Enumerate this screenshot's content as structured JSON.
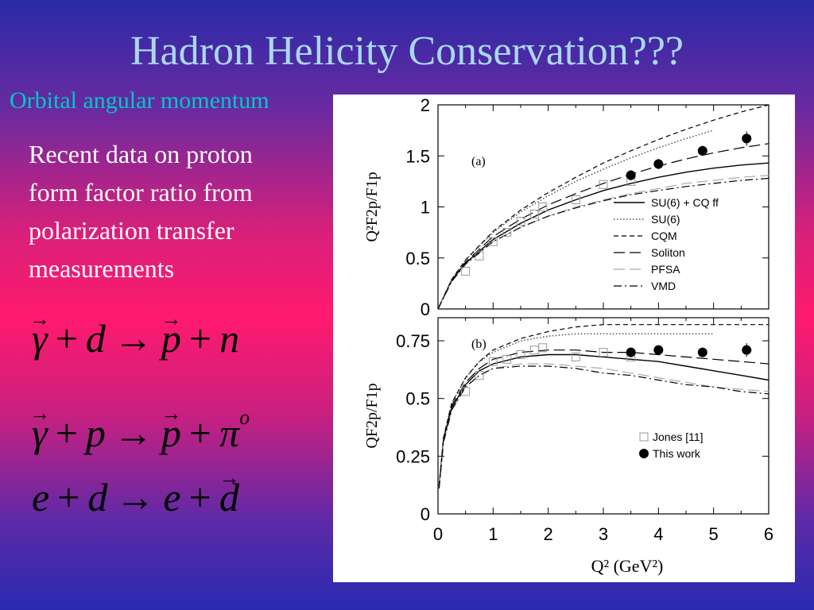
{
  "slide": {
    "title": "Hadron Helicity Conservation???",
    "subtitle": "Orbital angular momentum",
    "body_lines": [
      "Recent data on proton",
      "form factor ratio from",
      "polarization transfer",
      "measurements"
    ],
    "reactions": [
      {
        "lhs1": "γ",
        "plus1": "+",
        "lhs2": "d",
        "arrow": "→",
        "rhs1": "p",
        "plus2": "+",
        "rhs2": "n",
        "sup": ""
      },
      {
        "lhs1": "γ",
        "plus1": "+",
        "lhs2": "p",
        "arrow": "→",
        "rhs1": "p",
        "plus2": "+",
        "rhs2": "π",
        "sup": "o"
      },
      {
        "lhs1": "e",
        "plus1": "+",
        "lhs2": "d",
        "arrow": "→",
        "rhs1": "e",
        "plus2": "+",
        "rhs2": "d",
        "sup": ""
      }
    ],
    "colors": {
      "title": "#a8d8f0",
      "subtitle": "#00c8c8",
      "body": "#ffffff"
    }
  },
  "chart_data": [
    {
      "type": "line",
      "panel_label": "(a)",
      "ylabel": "Q²F2p/F1p",
      "ylim": [
        0,
        2
      ],
      "xlim": [
        0,
        6
      ],
      "yticks": [
        "0",
        "0.5",
        "1",
        "1.5",
        "2"
      ],
      "xticks": [
        "0",
        "1",
        "2",
        "3",
        "4",
        "5",
        "6"
      ],
      "legend_position": "bottom-right",
      "series": [
        {
          "name": "SU(6) + CQ ff",
          "style": "solid",
          "x": [
            0,
            0.25,
            0.5,
            1,
            1.5,
            2,
            2.5,
            3,
            3.5,
            4,
            4.5,
            5,
            5.5,
            6
          ],
          "y": [
            0,
            0.28,
            0.45,
            0.68,
            0.84,
            0.97,
            1.07,
            1.16,
            1.23,
            1.29,
            1.34,
            1.38,
            1.41,
            1.43
          ]
        },
        {
          "name": "SU(6)",
          "style": "dotted",
          "x": [
            0,
            0.25,
            0.5,
            1,
            1.5,
            2,
            2.5,
            3,
            3.5,
            4,
            4.5,
            5
          ],
          "y": [
            0,
            0.29,
            0.48,
            0.75,
            0.95,
            1.11,
            1.25,
            1.37,
            1.48,
            1.58,
            1.67,
            1.75
          ]
        },
        {
          "name": "CQM",
          "style": "dashed",
          "x": [
            0,
            0.25,
            0.5,
            1,
            1.5,
            2,
            2.5,
            3,
            3.5,
            4,
            4.5,
            5,
            5.5,
            6
          ],
          "y": [
            0,
            0.29,
            0.48,
            0.76,
            0.97,
            1.14,
            1.29,
            1.43,
            1.55,
            1.66,
            1.76,
            1.85,
            1.93,
            2.0
          ]
        },
        {
          "name": "Soliton",
          "style": "long-dash",
          "x": [
            0,
            0.25,
            0.5,
            1,
            1.5,
            2,
            2.5,
            3,
            3.5,
            4,
            4.5,
            5,
            5.5,
            6
          ],
          "y": [
            0,
            0.28,
            0.46,
            0.71,
            0.88,
            1.02,
            1.13,
            1.23,
            1.32,
            1.4,
            1.47,
            1.53,
            1.58,
            1.62
          ]
        },
        {
          "name": "PFSA",
          "style": "light-dash",
          "x": [
            0,
            0.25,
            0.5,
            1,
            1.5,
            2,
            2.5,
            3,
            3.5,
            4,
            4.5,
            5,
            5.5,
            6
          ],
          "y": [
            0,
            0.27,
            0.44,
            0.66,
            0.8,
            0.91,
            1.0,
            1.07,
            1.13,
            1.18,
            1.23,
            1.26,
            1.29,
            1.31
          ]
        },
        {
          "name": "VMD",
          "style": "dash-dot",
          "x": [
            0,
            0.25,
            0.5,
            1,
            1.5,
            2,
            2.5,
            3,
            3.5,
            4,
            4.5,
            5,
            5.5,
            6
          ],
          "y": [
            0,
            0.27,
            0.44,
            0.66,
            0.8,
            0.91,
            0.99,
            1.06,
            1.12,
            1.16,
            1.2,
            1.23,
            1.26,
            1.28
          ]
        }
      ],
      "points": [
        {
          "name": "Jones [11]",
          "marker": "open-square",
          "x": [
            0.5,
            0.75,
            1.0,
            1.25,
            1.5,
            1.75,
            1.9,
            2.5,
            3.0,
            3.5
          ],
          "y": [
            0.37,
            0.52,
            0.66,
            0.75,
            0.86,
            0.93,
            1.0,
            1.07,
            1.22,
            1.25
          ]
        },
        {
          "name": "This work",
          "marker": "filled-circle",
          "x": [
            3.5,
            4.0,
            4.8,
            5.6
          ],
          "y": [
            1.31,
            1.42,
            1.55,
            1.67
          ],
          "err": [
            0.05,
            0.05,
            0.05,
            0.07
          ]
        }
      ]
    },
    {
      "type": "line",
      "panel_label": "(b)",
      "ylabel": "QF2p/F1p",
      "xlabel": "Q² (GeV²)",
      "ylim": [
        0,
        0.85
      ],
      "xlim": [
        0,
        6
      ],
      "yticks": [
        "0",
        "0.25",
        "0.5",
        "0.75"
      ],
      "xticks": [
        "0",
        "1",
        "2",
        "3",
        "4",
        "5",
        "6"
      ],
      "legend_position": "bottom-right",
      "series": [
        {
          "name": "SU(6) + CQ ff",
          "style": "solid",
          "x": [
            0.02,
            0.1,
            0.25,
            0.5,
            0.75,
            1,
            1.5,
            2,
            2.5,
            3,
            3.5,
            4,
            4.5,
            5,
            5.5,
            6
          ],
          "y": [
            0.12,
            0.32,
            0.46,
            0.56,
            0.62,
            0.65,
            0.68,
            0.69,
            0.69,
            0.68,
            0.67,
            0.66,
            0.64,
            0.62,
            0.6,
            0.58
          ]
        },
        {
          "name": "SU(6)",
          "style": "dotted",
          "x": [
            0.02,
            0.1,
            0.25,
            0.5,
            0.75,
            1,
            1.5,
            2,
            2.5,
            3,
            3.5,
            4,
            4.5,
            5
          ],
          "y": [
            0.12,
            0.33,
            0.48,
            0.59,
            0.66,
            0.7,
            0.75,
            0.77,
            0.78,
            0.78,
            0.78,
            0.78,
            0.78,
            0.78
          ]
        },
        {
          "name": "CQM",
          "style": "dashed",
          "x": [
            0.02,
            0.1,
            0.25,
            0.5,
            0.75,
            1,
            1.5,
            2,
            2.5,
            3,
            3.5,
            4,
            4.5,
            5,
            5.5,
            6
          ],
          "y": [
            0.12,
            0.33,
            0.48,
            0.59,
            0.66,
            0.71,
            0.76,
            0.79,
            0.81,
            0.82,
            0.82,
            0.82,
            0.82,
            0.82,
            0.82,
            0.82
          ]
        },
        {
          "name": "Soliton",
          "style": "long-dash",
          "x": [
            0.02,
            0.1,
            0.25,
            0.5,
            0.75,
            1,
            1.5,
            2,
            2.5,
            3,
            3.5,
            4,
            4.5,
            5,
            5.5,
            6
          ],
          "y": [
            0.12,
            0.32,
            0.47,
            0.57,
            0.63,
            0.67,
            0.7,
            0.71,
            0.71,
            0.7,
            0.7,
            0.69,
            0.68,
            0.67,
            0.66,
            0.65
          ]
        },
        {
          "name": "PFSA",
          "style": "light-dash",
          "x": [
            0.02,
            0.1,
            0.25,
            0.5,
            0.75,
            1,
            1.5,
            2,
            2.5,
            3,
            3.5,
            4,
            4.5,
            5,
            5.5,
            6
          ],
          "y": [
            0.11,
            0.31,
            0.45,
            0.55,
            0.6,
            0.63,
            0.65,
            0.65,
            0.64,
            0.63,
            0.61,
            0.59,
            0.57,
            0.55,
            0.54,
            0.53
          ]
        },
        {
          "name": "VMD",
          "style": "dash-dot",
          "x": [
            0.02,
            0.1,
            0.25,
            0.5,
            0.75,
            1,
            1.5,
            2,
            2.5,
            3,
            3.5,
            4,
            4.5,
            5,
            5.5,
            6
          ],
          "y": [
            0.11,
            0.31,
            0.45,
            0.55,
            0.6,
            0.63,
            0.64,
            0.64,
            0.63,
            0.61,
            0.6,
            0.58,
            0.56,
            0.55,
            0.53,
            0.52
          ]
        }
      ],
      "points": [
        {
          "name": "Jones [11]",
          "marker": "open-square",
          "x": [
            0.5,
            0.75,
            1.0,
            1.25,
            1.5,
            1.75,
            1.9,
            2.5,
            3.0,
            3.5
          ],
          "y": [
            0.53,
            0.6,
            0.66,
            0.67,
            0.69,
            0.71,
            0.72,
            0.68,
            0.7,
            0.68
          ]
        },
        {
          "name": "This work",
          "marker": "filled-circle",
          "x": [
            3.5,
            4.0,
            4.8,
            5.6
          ],
          "y": [
            0.7,
            0.71,
            0.7,
            0.71
          ],
          "err": [
            0.02,
            0.02,
            0.02,
            0.03
          ]
        }
      ]
    }
  ]
}
